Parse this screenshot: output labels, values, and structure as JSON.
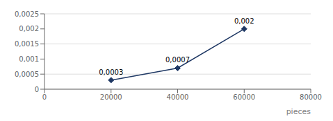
{
  "chart_data": {
    "type": "line",
    "x": [
      20000,
      40000,
      60000
    ],
    "values": [
      0.0003,
      0.0007,
      0.002
    ],
    "value_labels": [
      "0,0003",
      "0,0007",
      "0,002"
    ],
    "data_labels": true,
    "color": "#1F3864",
    "marker": "diamond",
    "xlabel": "pieces",
    "xlim": [
      0,
      80000
    ],
    "ylim": [
      0,
      0.0025
    ],
    "xticks": [
      0,
      20000,
      40000,
      60000,
      80000
    ],
    "yticks": [
      0,
      {
        "value": 0.0005,
        "label": "0,0005"
      },
      {
        "value": 0.001,
        "label": "0,001"
      },
      {
        "value": 0.0015,
        "label": "0,0015"
      },
      {
        "value": 0.002,
        "label": "0,002"
      },
      {
        "value": 0.0025,
        "label": "0,0025"
      }
    ],
    "grid": "y"
  }
}
